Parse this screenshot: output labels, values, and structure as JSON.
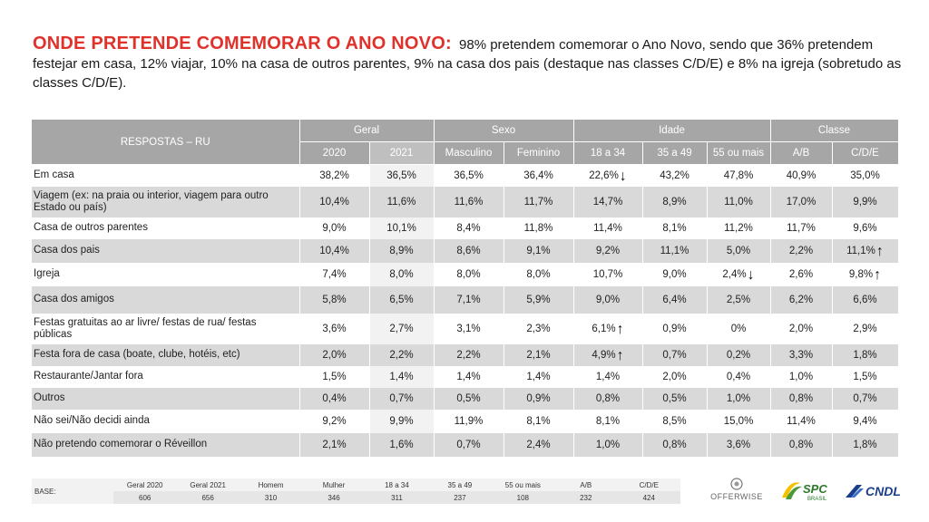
{
  "headline": {
    "title": "ONDE PRETENDE COMEMORAR O ANO NOVO:",
    "text": "98% pretendem comemorar o Ano Novo, sendo que 36% pretendem festejar em casa, 12% viajar, 10% na casa de outros parentes, 9% na casa dos pais (destaque nas classes C/D/E) e 8% na igreja (sobretudo as classes C/D/E)."
  },
  "table": {
    "respostas_header": "RESPOSTAS – RU",
    "groups": [
      "Geral",
      "Sexo",
      "Idade",
      "Classe"
    ],
    "columns": [
      "2020",
      "2021",
      "Masculino",
      "Feminino",
      "18 a 34",
      "35 a 49",
      "55 ou mais",
      "A/B",
      "C/D/E"
    ],
    "rows": [
      {
        "label": "Em casa",
        "values": [
          "38,2%",
          "36,5%",
          "36,5%",
          "36,4%",
          "22,6%",
          "43,2%",
          "47,8%",
          "40,9%",
          "35,0%"
        ],
        "arrows": {
          "4": "down"
        }
      },
      {
        "label": "Viagem (ex: na praia ou interior, viagem para outro Estado ou país)",
        "values": [
          "10,4%",
          "11,6%",
          "11,6%",
          "11,7%",
          "14,7%",
          "8,9%",
          "11,0%",
          "17,0%",
          "9,9%"
        ],
        "arrows": {}
      },
      {
        "label": "Casa de outros parentes",
        "values": [
          "9,0%",
          "10,1%",
          "8,4%",
          "11,8%",
          "11,4%",
          "8,1%",
          "11,2%",
          "11,7%",
          "9,6%"
        ],
        "arrows": {}
      },
      {
        "label": "Casa dos pais",
        "values": [
          "10,4%",
          "8,9%",
          "8,6%",
          "9,1%",
          "9,2%",
          "11,1%",
          "5,0%",
          "2,2%",
          "11,1%"
        ],
        "arrows": {
          "8": "up"
        }
      },
      {
        "label": "Igreja",
        "values": [
          "7,4%",
          "8,0%",
          "8,0%",
          "8,0%",
          "10,7%",
          "9,0%",
          "2,4%",
          "2,6%",
          "9,8%"
        ],
        "arrows": {
          "6": "down",
          "8": "up"
        }
      },
      {
        "label": "Casa dos amigos",
        "values": [
          "5,8%",
          "6,5%",
          "7,1%",
          "5,9%",
          "9,0%",
          "6,4%",
          "2,5%",
          "6,2%",
          "6,6%"
        ],
        "arrows": {}
      },
      {
        "label": "Festas gratuitas ao ar livre/ festas de rua/ festas públicas",
        "values": [
          "3,6%",
          "2,7%",
          "3,1%",
          "2,3%",
          "6,1%",
          "0,9%",
          "0%",
          "2,0%",
          "2,9%"
        ],
        "arrows": {
          "4": "up"
        }
      },
      {
        "label": "Festa fora de casa (boate, clube, hotéis, etc)",
        "values": [
          "2,0%",
          "2,2%",
          "2,2%",
          "2,1%",
          "4,9%",
          "0,7%",
          "0,2%",
          "3,3%",
          "1,8%"
        ],
        "arrows": {
          "4": "up"
        }
      },
      {
        "label": "Restaurante/Jantar fora",
        "values": [
          "1,5%",
          "1,4%",
          "1,4%",
          "1,4%",
          "1,4%",
          "2,0%",
          "0,4%",
          "1,0%",
          "1,5%"
        ],
        "arrows": {}
      },
      {
        "label": "Outros",
        "values": [
          "0,4%",
          "0,7%",
          "0,5%",
          "0,9%",
          "0,8%",
          "0,5%",
          "1,0%",
          "0,8%",
          "0,7%"
        ],
        "arrows": {}
      },
      {
        "label": "Não sei/Não decidi ainda",
        "values": [
          "9,2%",
          "9,9%",
          "11,9%",
          "8,1%",
          "8,1%",
          "8,5%",
          "15,0%",
          "11,4%",
          "9,4%"
        ],
        "arrows": {}
      },
      {
        "label": "Não pretendo comemorar  o Réveillon",
        "values": [
          "2,1%",
          "1,6%",
          "0,7%",
          "2,4%",
          "1,0%",
          "0,8%",
          "3,6%",
          "0,8%",
          "1,8%"
        ],
        "arrows": {}
      }
    ]
  },
  "base": {
    "label": "BASE:",
    "headers": [
      "Geral 2020",
      "Geral 2021",
      "Homem",
      "Mulher",
      "18 a 34",
      "35 a 49",
      "55 ou mais",
      "A/B",
      "C/D/E"
    ],
    "values": [
      "606",
      "656",
      "310",
      "346",
      "311",
      "237",
      "108",
      "232",
      "424"
    ]
  },
  "logos": {
    "offerwise": "OFFERWISE",
    "spc": "SPC",
    "spc_sub": "BRASIL",
    "cndl": "CNDL"
  },
  "colors": {
    "title_red": "#e0312b",
    "header_gray": "#a6a6a6",
    "row_shade": "#d9d9d9",
    "spc_green": "#4a9a3a",
    "spc_yellow": "#f2c200",
    "cndl_blue": "#1b3e8c"
  }
}
